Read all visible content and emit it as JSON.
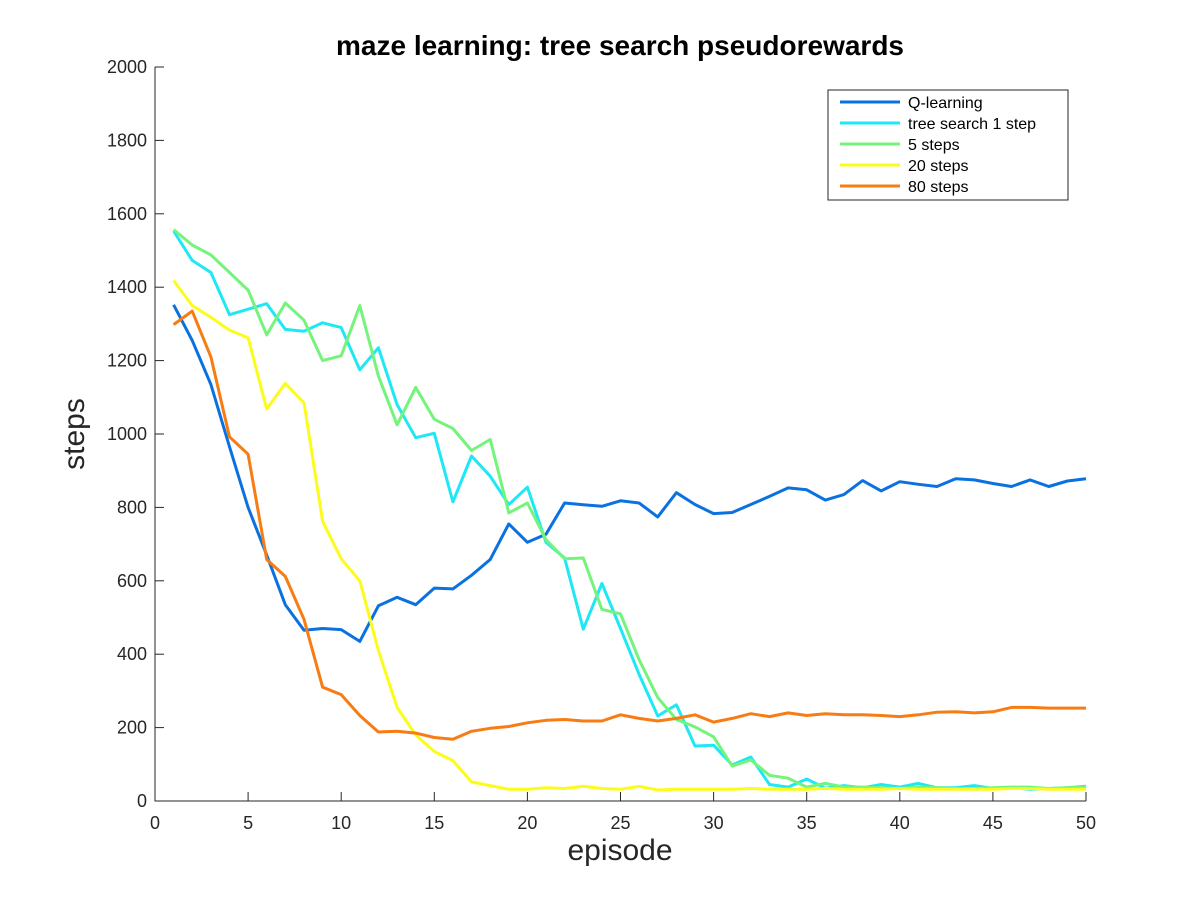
{
  "chart_data": {
    "type": "line",
    "title": "maze learning: tree search pseudorewards",
    "xlabel": "episode",
    "ylabel": "steps",
    "xlim": [
      0,
      50
    ],
    "ylim": [
      0,
      2000
    ],
    "xticks": [
      0,
      5,
      10,
      15,
      20,
      25,
      30,
      35,
      40,
      45,
      50
    ],
    "yticks": [
      0,
      200,
      400,
      600,
      800,
      1000,
      1200,
      1400,
      1600,
      1800,
      2000
    ],
    "grid": false,
    "legend_position": "top-right",
    "x": [
      1,
      2,
      3,
      4,
      5,
      6,
      7,
      8,
      9,
      10,
      11,
      12,
      13,
      14,
      15,
      16,
      17,
      18,
      19,
      20,
      21,
      22,
      23,
      24,
      25,
      26,
      27,
      28,
      29,
      30,
      31,
      32,
      33,
      34,
      35,
      36,
      37,
      38,
      39,
      40,
      41,
      42,
      43,
      44,
      45,
      46,
      47,
      48,
      49,
      50
    ],
    "series": [
      {
        "name": "Q-learning",
        "color": "#0a72e0",
        "values": [
          1352,
          1255,
          1135,
          965,
          800,
          670,
          535,
          465,
          470,
          467,
          435,
          532,
          555,
          535,
          580,
          578,
          615,
          658,
          755,
          705,
          727,
          812,
          807,
          803,
          818,
          812,
          774,
          840,
          808,
          783,
          786,
          808,
          830,
          853,
          848,
          820,
          835,
          873,
          845,
          870,
          863,
          857,
          878,
          875,
          865,
          857,
          875,
          857,
          872,
          878
        ]
      },
      {
        "name": "tree search 1 step",
        "color": "#1ee8f4",
        "values": [
          1553,
          1473,
          1440,
          1325,
          1340,
          1355,
          1285,
          1280,
          1303,
          1290,
          1175,
          1235,
          1080,
          990,
          1002,
          815,
          940,
          885,
          808,
          855,
          705,
          662,
          468,
          593,
          470,
          345,
          232,
          262,
          150,
          152,
          98,
          120,
          45,
          38,
          60,
          35,
          42,
          36,
          45,
          38,
          48,
          36,
          36,
          42,
          34,
          36,
          32,
          34,
          36,
          40
        ]
      },
      {
        "name": "5 steps",
        "color": "#74f47a",
        "values": [
          1557,
          1515,
          1488,
          1440,
          1392,
          1270,
          1357,
          1310,
          1200,
          1213,
          1350,
          1158,
          1025,
          1127,
          1040,
          1015,
          955,
          985,
          785,
          812,
          712,
          660,
          662,
          522,
          510,
          385,
          282,
          222,
          202,
          175,
          95,
          112,
          70,
          62,
          38,
          48,
          38,
          38,
          36,
          34,
          38,
          36,
          34,
          34,
          36,
          38,
          38,
          34,
          36,
          38
        ]
      },
      {
        "name": "20 steps",
        "color": "#fcfc1c",
        "values": [
          1418,
          1350,
          1318,
          1283,
          1262,
          1068,
          1138,
          1085,
          762,
          660,
          600,
          410,
          255,
          180,
          135,
          110,
          52,
          42,
          32,
          32,
          36,
          34,
          40,
          34,
          32,
          40,
          30,
          32,
          32,
          32,
          32,
          34,
          32,
          32,
          32,
          34,
          32,
          32,
          32,
          34,
          32,
          32,
          32,
          32,
          32,
          34,
          34,
          32,
          32,
          32
        ]
      },
      {
        "name": "80 steps",
        "color": "#f77c14",
        "values": [
          1298,
          1335,
          1210,
          992,
          945,
          658,
          612,
          495,
          310,
          290,
          233,
          188,
          190,
          185,
          173,
          168,
          190,
          198,
          203,
          213,
          220,
          222,
          218,
          218,
          235,
          225,
          218,
          225,
          235,
          215,
          225,
          238,
          230,
          240,
          233,
          238,
          235,
          235,
          233,
          230,
          235,
          242,
          243,
          240,
          243,
          255,
          255,
          253,
          253,
          253
        ]
      }
    ]
  }
}
